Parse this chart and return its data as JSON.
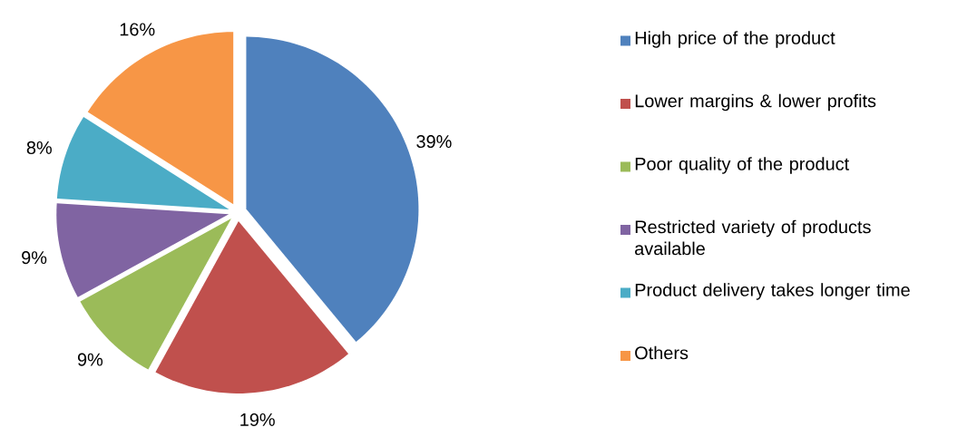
{
  "chart_data": {
    "type": "pie",
    "categories": [
      "High price of the product",
      "Lower margins & lower profits",
      "Poor quality of the product",
      "Restricted variety of products available",
      "Product delivery takes longer time",
      "Others"
    ],
    "values": [
      39,
      19,
      9,
      9,
      8,
      16
    ],
    "value_labels": [
      "39%",
      "19%",
      "9%",
      "9%",
      "8%",
      "16%"
    ],
    "colors": [
      "#4f81bd",
      "#c0504d",
      "#9bbb59",
      "#8064a2",
      "#4bacc6",
      "#f79646"
    ],
    "legend": "right"
  }
}
